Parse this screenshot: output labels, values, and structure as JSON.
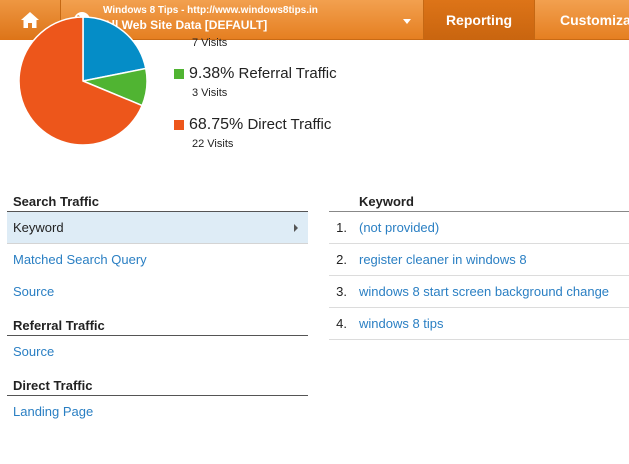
{
  "header": {
    "account_line1": "Windows 8 Tips - http://www.windows8tips.in",
    "account_line2": "All Web Site Data [DEFAULT]",
    "tabs": [
      {
        "label": "Reporting",
        "active": true
      },
      {
        "label": "Customizat",
        "active": false
      }
    ],
    "accent_color": "#e8872d"
  },
  "chart_data": {
    "type": "pie",
    "slices": [
      {
        "name": "Search Traffic",
        "percent": 21.88,
        "visits": 7,
        "color": "#058dc7"
      },
      {
        "name": "Referral Traffic",
        "percent": 9.38,
        "visits": 3,
        "color": "#50b432"
      },
      {
        "name": "Direct Traffic",
        "percent": 68.75,
        "visits": 22,
        "color": "#ed561b"
      }
    ]
  },
  "legend": {
    "top_partial_sub": "7 Visits",
    "items": [
      {
        "percent": "9.38%",
        "label": "Referral Traffic",
        "visits": "3 Visits",
        "color": "#50b432"
      },
      {
        "percent": "68.75%",
        "label": "Direct Traffic",
        "visits": "22 Visits",
        "color": "#ed561b"
      }
    ]
  },
  "leftnav": {
    "sections": [
      {
        "title": "Search Traffic",
        "items": [
          {
            "label": "Keyword",
            "active": true
          },
          {
            "label": "Matched Search Query",
            "active": false
          },
          {
            "label": "Source",
            "active": false
          }
        ]
      },
      {
        "title": "Referral Traffic",
        "items": [
          {
            "label": "Source",
            "active": false
          }
        ]
      },
      {
        "title": "Direct Traffic",
        "items": [
          {
            "label": "Landing Page",
            "active": false
          }
        ]
      }
    ]
  },
  "keywords": {
    "header": "Keyword",
    "rows": [
      {
        "num": "1.",
        "keyword": "(not provided)"
      },
      {
        "num": "2.",
        "keyword": "register cleaner in windows 8"
      },
      {
        "num": "3.",
        "keyword": "windows 8 start screen background change"
      },
      {
        "num": "4.",
        "keyword": "windows 8 tips"
      }
    ]
  }
}
